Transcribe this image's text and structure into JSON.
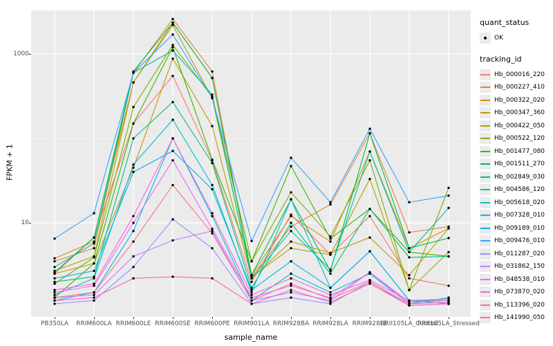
{
  "chart_data": {
    "type": "line",
    "title": "",
    "xlabel": "sample_name",
    "ylabel": "FPKM + 1",
    "yscale": "log10",
    "ylim": [
      0.77,
      3300
    ],
    "y_major_ticks": [
      10,
      1000
    ],
    "y_minor_gridlines": [
      1,
      100
    ],
    "grid": "on",
    "point_color": "#000000",
    "panel_background": "#EBEBEB",
    "gridline_color": "#FFFFFF",
    "categories": [
      "PB350LA",
      "RRIM600LA",
      "RRIM600LE",
      "RRIM600SE",
      "RRIM600PE",
      "RRIM901LA",
      "RRIM928BA",
      "RRIM928LA",
      "RRIM928LE",
      "RRII105LA_Control",
      "RRII105LA_Stressed"
    ],
    "legend": {
      "position": "right",
      "quant_status_title": "quant_status",
      "quant_status_items": [
        {
          "label": "OK",
          "marker": "point"
        }
      ],
      "tracking_id_title": "tracking_id"
    },
    "series": [
      {
        "name": "Hb_000016_220",
        "color": "#F8766D",
        "values": [
          2.5,
          6.7,
          150,
          550,
          55,
          2.0,
          12.5,
          4.2,
          12,
          2.2,
          1.8
        ]
      },
      {
        "name": "Hb_000227_410",
        "color": "#EA8331",
        "values": [
          3.5,
          5.0,
          600,
          2600,
          620,
          2.3,
          9.0,
          16.5,
          115,
          7.7,
          9.0
        ]
      },
      {
        "name": "Hb_000322_020",
        "color": "#D89000",
        "values": [
          3.8,
          6.0,
          460,
          2350,
          520,
          2.4,
          12,
          6.0,
          70,
          5.0,
          8.6
        ]
      },
      {
        "name": "Hb_000347_360",
        "color": "#C09B00",
        "values": [
          2.5,
          3.3,
          45,
          880,
          140,
          2.2,
          6.0,
          4.4,
          6.7,
          2.4,
          8.6
        ]
      },
      {
        "name": "Hb_000422_050",
        "color": "#A3A500",
        "values": [
          2.7,
          4.0,
          460,
          2200,
          300,
          2.3,
          5.0,
          4.2,
          33,
          1.6,
          4.5
        ]
      },
      {
        "name": "Hb_000522_120",
        "color": "#7CAE00",
        "values": [
          1.9,
          3.9,
          235,
          1280,
          310,
          3.5,
          23,
          6.9,
          55,
          1.6,
          26
        ]
      },
      {
        "name": "Hb_001477_080",
        "color": "#39B600",
        "values": [
          1.3,
          3.3,
          150,
          1200,
          56,
          3.5,
          47,
          6.5,
          14.6,
          4.5,
          4.0
        ]
      },
      {
        "name": "Hb_001511_270",
        "color": "#00BB4E",
        "values": [
          2.6,
          6.7,
          620,
          2350,
          520,
          2.4,
          19,
          2.7,
          115,
          5.0,
          6.6
        ]
      },
      {
        "name": "Hb_002849_030",
        "color": "#00BF7D",
        "values": [
          2.0,
          2.3,
          100,
          270,
          51,
          1.7,
          10,
          2.5,
          14.6,
          3.9,
          4.0
        ]
      },
      {
        "name": "Hb_004586_120",
        "color": "#00C1A3",
        "values": [
          3.0,
          5.7,
          600,
          1100,
          330,
          2.2,
          8.0,
          2.8,
          70,
          4.5,
          15
        ]
      },
      {
        "name": "Hb_005618_020",
        "color": "#00BFC4",
        "values": [
          1.4,
          2.2,
          49,
          166,
          28,
          1.5,
          19,
          1.7,
          4.6,
          1.2,
          1.2
        ]
      },
      {
        "name": "Hb_007328_010",
        "color": "#00BAE0",
        "values": [
          1.2,
          1.5,
          8.0,
          100,
          12,
          1.2,
          2.5,
          1.5,
          2.5,
          1.1,
          1.3
        ]
      },
      {
        "name": "Hb_009189_010",
        "color": "#00B0F6",
        "values": [
          2.2,
          2.7,
          40,
          71,
          25,
          1.6,
          3.5,
          1.7,
          4.6,
          1.2,
          1.1
        ]
      },
      {
        "name": "Hb_009476_010",
        "color": "#35A2FF",
        "values": [
          6.5,
          13,
          600,
          1700,
          300,
          6.1,
          59,
          17.5,
          130,
          17.5,
          21
        ]
      },
      {
        "name": "Hb_011287_020",
        "color": "#9590FF",
        "values": [
          1.1,
          1.2,
          3.0,
          11,
          5.0,
          1.1,
          1.3,
          1.1,
          2.0,
          1.05,
          1.1
        ]
      },
      {
        "name": "Hb_031862_150",
        "color": "#C77CFF",
        "values": [
          1.3,
          1.4,
          4.0,
          6.2,
          8.0,
          1.2,
          1.5,
          1.2,
          2.6,
          1.1,
          1.15
        ]
      },
      {
        "name": "Hb_048538_010",
        "color": "#E76BF3",
        "values": [
          1.5,
          1.8,
          10,
          55,
          8.5,
          1.3,
          1.8,
          1.3,
          2.6,
          1.15,
          1.2
        ]
      },
      {
        "name": "Hb_073870_020",
        "color": "#FA62DB",
        "values": [
          1.6,
          1.9,
          12,
          100,
          13,
          1.4,
          2.2,
          1.4,
          2.1,
          1.2,
          1.25
        ]
      },
      {
        "name": "Hb_113396_020",
        "color": "#FF62BC",
        "values": [
          1.2,
          1.3,
          2.2,
          2.3,
          2.2,
          1.1,
          1.6,
          1.15,
          1.9,
          1.05,
          1.1
        ]
      },
      {
        "name": "Hb_141990_050",
        "color": "#FF6A98",
        "values": [
          1.3,
          1.5,
          6.0,
          28,
          7.5,
          1.2,
          1.9,
          1.25,
          2.0,
          1.1,
          1.15
        ]
      }
    ]
  }
}
